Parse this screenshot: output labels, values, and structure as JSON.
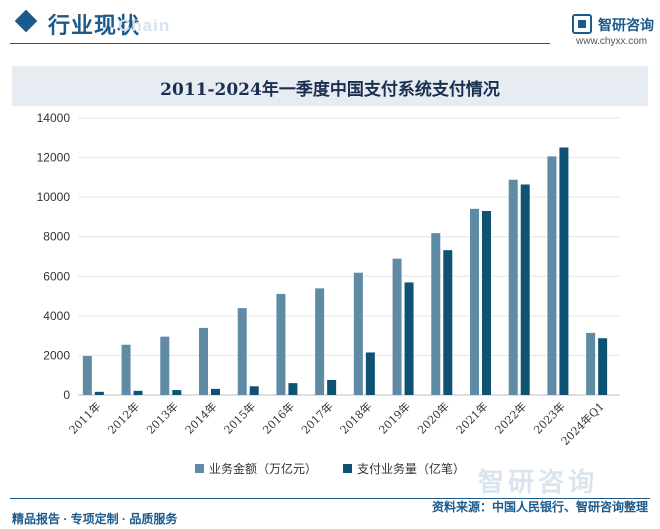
{
  "header": {
    "title": "行业现状",
    "ghost_text": "Chain",
    "brand_name": "智研咨询",
    "brand_url": "www.chyxx.com"
  },
  "watermark": "智研咨询",
  "footer": {
    "left": "精品报告 · 专项定制 · 品质服务",
    "source": "资料来源：中国人民银行、智研咨询整理"
  },
  "colors": {
    "series1": "#5f8ba4",
    "series2": "#0f5374",
    "accent": "#1b5a8c"
  },
  "chart_data": {
    "type": "bar",
    "title": "2011-2024年一季度中国支付系统支付情况",
    "xlabel": "",
    "ylabel": "",
    "ylim": [
      0,
      14000
    ],
    "yticks": [
      0,
      2000,
      4000,
      6000,
      8000,
      10000,
      12000,
      14000
    ],
    "grid": true,
    "legend_position": "bottom",
    "categories": [
      "2011年",
      "2012年",
      "2013年",
      "2014年",
      "2015年",
      "2016年",
      "2017年",
      "2018年",
      "2019年",
      "2020年",
      "2021年",
      "2022年",
      "2023年",
      "2024年Q1"
    ],
    "series": [
      {
        "name": "业务金额（万亿元）",
        "values": [
          1970,
          2540,
          2950,
          3390,
          4390,
          5110,
          5390,
          6180,
          6890,
          8180,
          9410,
          10880,
          12060,
          3140
        ]
      },
      {
        "name": "支付业务量（亿笔）",
        "values": [
          160,
          210,
          250,
          310,
          440,
          600,
          760,
          2150,
          5690,
          7320,
          9300,
          10640,
          12510,
          2870
        ]
      }
    ]
  }
}
